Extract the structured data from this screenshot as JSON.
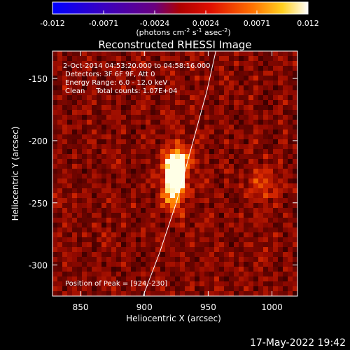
{
  "colorbar": {
    "tick_labels": [
      "-0.012",
      "-0.0071",
      "-0.0024",
      "0.0024",
      "0.0071",
      "0.012"
    ],
    "unit_prefix": "(photons cm",
    "unit_exp1": "-2",
    "unit_mid": " s",
    "unit_exp2": "-1",
    "unit_mid2": " asec",
    "unit_exp3": "-2",
    "unit_suffix": ")"
  },
  "chart_data": {
    "type": "heatmap",
    "title": "Reconstructed RHESSI Image",
    "xlabel": "Heliocentric X (arcsec)",
    "ylabel": "Heliocentric Y (arcsec)",
    "xlim": [
      828,
      1020
    ],
    "ylim": [
      -325,
      -128
    ],
    "x_ticks": [
      850,
      900,
      950,
      1000
    ],
    "y_ticks": [
      -150,
      -200,
      -250,
      -300
    ],
    "info_lines": [
      " 2-Oct-2014 04:53:20.000 to 04:58:16.000",
      "Detectors: 3F 6F 9F, Att 0",
      "Energy Range: 6.0 - 12.0 keV",
      "Clean     Total counts: 1.07E+04"
    ],
    "peak_text": "Position of Peak = [924,-230]",
    "peak": [
      924,
      -230
    ],
    "limb_points": [
      [
        899,
        -325
      ],
      [
        912,
        -290
      ],
      [
        925,
        -250
      ],
      [
        937,
        -205
      ],
      [
        949,
        -160
      ],
      [
        956,
        -128
      ]
    ]
  },
  "footer": {
    "timestamp": "17-May-2022 19:42"
  }
}
